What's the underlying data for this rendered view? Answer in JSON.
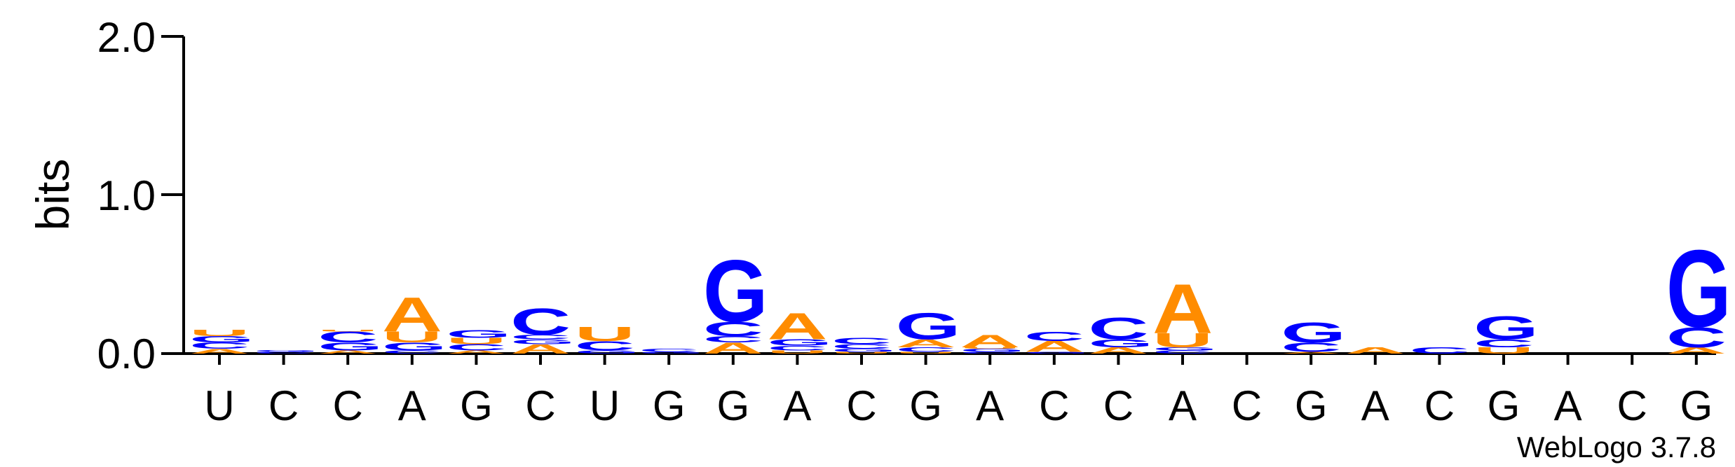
{
  "chart_data": {
    "type": "sequence-logo",
    "ylabel": "bits",
    "ylim": [
      0,
      2.0
    ],
    "yticks": [
      "0.0",
      "1.0",
      "2.0"
    ],
    "x_tick_labels": [
      "U",
      "C",
      "C",
      "A",
      "G",
      "C",
      "U",
      "G",
      "G",
      "A",
      "C",
      "G",
      "A",
      "C",
      "C",
      "A",
      "C",
      "G",
      "A",
      "C",
      "G",
      "A",
      "C",
      "G"
    ],
    "colors": {
      "A": "#ff8c00",
      "U": "#ff8c00",
      "C": "#0000ff",
      "G": "#0000ff"
    },
    "columns": [
      [
        [
          "A",
          0.03
        ],
        [
          "C",
          0.04
        ],
        [
          "G",
          0.04
        ],
        [
          "U",
          0.04
        ]
      ],
      [
        [
          "C",
          0.01
        ],
        [
          "G",
          0.01
        ]
      ],
      [
        [
          "A",
          0.02
        ],
        [
          "G",
          0.05
        ],
        [
          "C",
          0.07
        ],
        [
          "U",
          0.01
        ]
      ],
      [
        [
          "C",
          0.02
        ],
        [
          "G",
          0.05
        ],
        [
          "U",
          0.07
        ],
        [
          "A",
          0.22
        ]
      ],
      [
        [
          "A",
          0.02
        ],
        [
          "C",
          0.04
        ],
        [
          "U",
          0.04
        ],
        [
          "G",
          0.05
        ]
      ],
      [
        [
          "A",
          0.06
        ],
        [
          "G",
          0.03
        ],
        [
          "C",
          0.03
        ],
        [
          "C",
          0.17
        ]
      ],
      [
        [
          "G",
          0.02
        ],
        [
          "C",
          0.06
        ],
        [
          "U",
          0.09
        ]
      ],
      [
        [
          "G",
          0.01
        ],
        [
          "C",
          0.02
        ]
      ],
      [
        [
          "A",
          0.07
        ],
        [
          "C",
          0.04
        ],
        [
          "C",
          0.09
        ],
        [
          "G",
          0.4
        ]
      ],
      [
        [
          "U",
          0.02
        ],
        [
          "C",
          0.03
        ],
        [
          "G",
          0.04
        ],
        [
          "A",
          0.17
        ]
      ],
      [
        [
          "U",
          0.01
        ],
        [
          "G",
          0.02
        ],
        [
          "C",
          0.03
        ],
        [
          "C",
          0.04
        ]
      ],
      [
        [
          "U",
          0.01
        ],
        [
          "C",
          0.03
        ],
        [
          "A",
          0.05
        ],
        [
          "G",
          0.17
        ]
      ],
      [
        [
          "C",
          0.01
        ],
        [
          "G",
          0.02
        ],
        [
          "U",
          0.01
        ],
        [
          "A",
          0.08
        ]
      ],
      [
        [
          "G",
          0.01
        ],
        [
          "A",
          0.07
        ],
        [
          "C",
          0.06
        ]
      ],
      [
        [
          "A",
          0.04
        ],
        [
          "G",
          0.05
        ],
        [
          "C",
          0.14
        ]
      ],
      [
        [
          "C",
          0.02
        ],
        [
          "G",
          0.02
        ],
        [
          "U",
          0.09
        ],
        [
          "A",
          0.32
        ]
      ],
      [],
      [
        [
          "A",
          0.01
        ],
        [
          "C",
          0.06
        ],
        [
          "G",
          0.13
        ]
      ],
      [
        [
          "A",
          0.04
        ]
      ],
      [
        [
          "C",
          0.04
        ]
      ],
      [
        [
          "U",
          0.04
        ],
        [
          "C",
          0.05
        ],
        [
          "G",
          0.15
        ]
      ],
      [],
      [],
      [
        [
          "A",
          0.04
        ],
        [
          "C",
          0.13
        ],
        [
          "G",
          0.5
        ]
      ]
    ],
    "grid": false,
    "credit": "WebLogo 3.7.8"
  }
}
